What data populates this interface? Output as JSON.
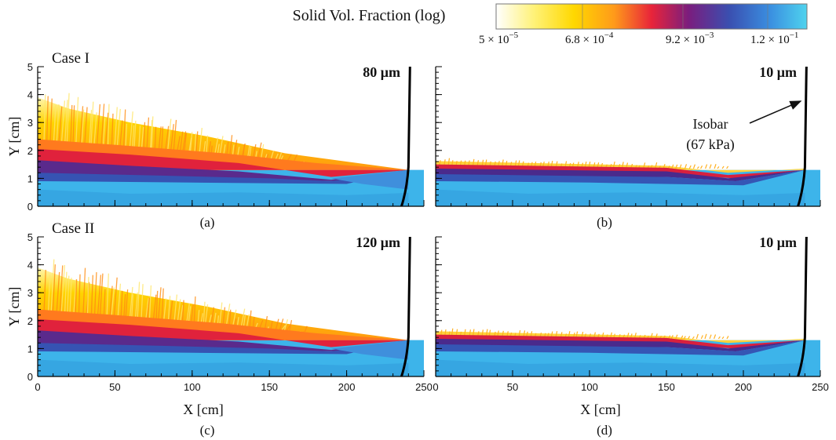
{
  "colorbar": {
    "title": "Solid Vol. Fraction (log)",
    "labels": [
      {
        "base": "5 × 10",
        "exponent": "−5"
      },
      {
        "base": "6.8 × 10",
        "exponent": "−4"
      },
      {
        "base": "9.2 × 10",
        "exponent": "−3"
      },
      {
        "base": "1.2 × 10",
        "exponent": "−1"
      }
    ]
  },
  "axes": {
    "y_label": "Y [cm]",
    "x_label": "X [cm]",
    "yticks": [
      0,
      1,
      2,
      3,
      4,
      5
    ],
    "xticks": [
      0,
      50,
      100,
      150,
      200,
      250
    ]
  },
  "panels": [
    {
      "sublabel": "(a)",
      "case": "Case I",
      "size": "80 μm"
    },
    {
      "sublabel": "(b)",
      "size": "10 μm",
      "annotation": [
        "Isobar",
        "(67 kPa)"
      ]
    },
    {
      "sublabel": "(c)",
      "case": "Case II",
      "size": "120 μm"
    },
    {
      "sublabel": "(d)",
      "size": "10 μm"
    }
  ]
}
